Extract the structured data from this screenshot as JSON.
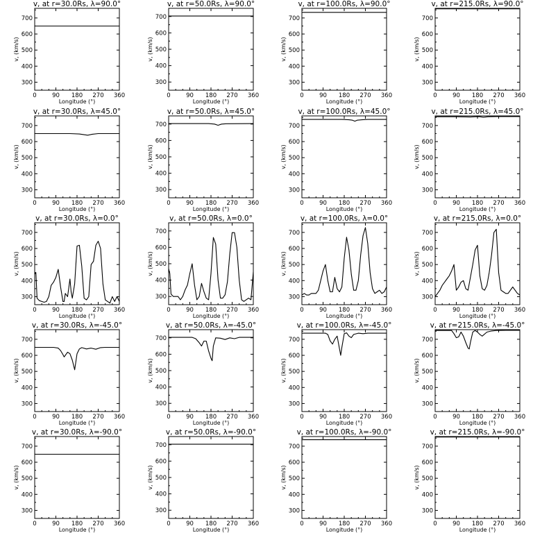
{
  "chart_data": [
    {
      "type": "line",
      "title": "v, at r=30.0Rs, λ=90.0°",
      "xlabel": "Longitude (°)",
      "ylabel": "v, (km/s)",
      "xlim": [
        0,
        360
      ],
      "ylim": [
        250,
        760
      ],
      "xticks": [
        0,
        90,
        180,
        270,
        360
      ],
      "yticks": [
        300,
        400,
        500,
        600,
        700
      ],
      "x": [
        0,
        360
      ],
      "y": [
        650,
        650
      ]
    },
    {
      "type": "line",
      "title": "v, at r=50.0Rs, λ=90.0°",
      "xlabel": "Longitude (°)",
      "ylabel": "v, (km/s)",
      "xlim": [
        0,
        360
      ],
      "ylim": [
        250,
        750
      ],
      "xticks": [
        0,
        90,
        180,
        270,
        360
      ],
      "yticks": [
        300,
        400,
        500,
        600,
        700
      ],
      "x": [
        0,
        360
      ],
      "y": [
        703,
        703
      ]
    },
    {
      "type": "line",
      "title": "v, at r=100.0Rs, λ=90.0°",
      "xlabel": "Longitude (°)",
      "ylabel": "v, (km/s)",
      "xlim": [
        0,
        360
      ],
      "ylim": [
        250,
        760
      ],
      "xticks": [
        0,
        90,
        180,
        270,
        360
      ],
      "yticks": [
        300,
        400,
        500,
        600,
        700
      ],
      "x": [
        0,
        360
      ],
      "y": [
        735,
        735
      ]
    },
    {
      "type": "line",
      "title": "v, at r=215.0Rs, λ=90.0°",
      "xlabel": "Longitude (°)",
      "ylabel": "v, (km/s)",
      "xlim": [
        0,
        360
      ],
      "ylim": [
        250,
        760
      ],
      "xticks": [
        0,
        90,
        180,
        270,
        360
      ],
      "yticks": [
        300,
        400,
        500,
        600,
        700
      ],
      "x": [
        0,
        360
      ],
      "y": [
        757,
        757
      ]
    },
    {
      "type": "line",
      "title": "v, at r=30.0Rs, λ=45.0°",
      "xlabel": "Longitude (°)",
      "ylabel": "v, (km/s)",
      "xlim": [
        0,
        360
      ],
      "ylim": [
        250,
        760
      ],
      "xticks": [
        0,
        90,
        180,
        270,
        360
      ],
      "yticks": [
        300,
        400,
        500,
        600,
        700
      ],
      "x": [
        0,
        150,
        190,
        210,
        225,
        245,
        270,
        360
      ],
      "y": [
        650,
        650,
        647,
        643,
        640,
        646,
        650,
        650
      ]
    },
    {
      "type": "line",
      "title": "v, at r=50.0Rs, λ=45.0°",
      "xlabel": "Longitude (°)",
      "ylabel": "v, (km/s)",
      "xlim": [
        0,
        360
      ],
      "ylim": [
        250,
        750
      ],
      "xticks": [
        0,
        90,
        180,
        270,
        360
      ],
      "yticks": [
        300,
        400,
        500,
        600,
        700
      ],
      "x": [
        0,
        170,
        195,
        210,
        225,
        245,
        360
      ],
      "y": [
        703,
        703,
        700,
        693,
        700,
        702,
        703
      ]
    },
    {
      "type": "line",
      "title": "v, at r=100.0Rs, λ=45.0°",
      "xlabel": "Longitude (°)",
      "ylabel": "v, (km/s)",
      "xlim": [
        0,
        360
      ],
      "ylim": [
        250,
        760
      ],
      "xticks": [
        0,
        90,
        180,
        270,
        360
      ],
      "yticks": [
        300,
        400,
        500,
        600,
        700
      ],
      "x": [
        0,
        170,
        200,
        215,
        225,
        235,
        255,
        280,
        360
      ],
      "y": [
        738,
        738,
        736,
        733,
        727,
        733,
        736,
        738,
        738
      ]
    },
    {
      "type": "line",
      "title": "v, at r=215.0Rs, λ=45.0°",
      "xlabel": "Longitude (°)",
      "ylabel": "v, (km/s)",
      "xlim": [
        0,
        360
      ],
      "ylim": [
        250,
        760
      ],
      "xticks": [
        0,
        90,
        180,
        270,
        360
      ],
      "yticks": [
        300,
        400,
        500,
        600,
        700
      ],
      "x": [
        0,
        90,
        150,
        185,
        205,
        225,
        260,
        360
      ],
      "y": [
        755,
        755,
        753,
        756,
        752,
        755,
        756,
        756
      ]
    },
    {
      "type": "line",
      "title": "v, at r=30.0Rs, λ=0.0°",
      "xlabel": "Longitude (°)",
      "ylabel": "v, (km/s)",
      "xlim": [
        0,
        360
      ],
      "ylim": [
        250,
        760
      ],
      "xticks": [
        0,
        90,
        180,
        270,
        360
      ],
      "yticks": [
        300,
        400,
        500,
        600,
        700
      ],
      "x": [
        0,
        5,
        10,
        20,
        30,
        40,
        50,
        60,
        70,
        80,
        90,
        100,
        110,
        120,
        125,
        130,
        140,
        150,
        155,
        160,
        170,
        180,
        190,
        200,
        210,
        220,
        230,
        240,
        250,
        260,
        270,
        280,
        290,
        300,
        310,
        320,
        330,
        340,
        350,
        360
      ],
      "y": [
        440,
        450,
        290,
        275,
        270,
        265,
        270,
        300,
        370,
        390,
        420,
        470,
        360,
        270,
        270,
        320,
        300,
        410,
        330,
        290,
        380,
        615,
        620,
        490,
        290,
        280,
        300,
        500,
        520,
        620,
        645,
        600,
        380,
        280,
        270,
        260,
        300,
        270,
        300,
        270
      ]
    },
    {
      "type": "line",
      "title": "v, at r=50.0Rs, λ=0.0°",
      "xlabel": "Longitude (°)",
      "ylabel": "v, (km/s)",
      "xlim": [
        0,
        360
      ],
      "ylim": [
        250,
        750
      ],
      "xticks": [
        0,
        90,
        180,
        270,
        360
      ],
      "yticks": [
        300,
        400,
        500,
        600,
        700
      ],
      "x": [
        0,
        5,
        10,
        20,
        40,
        50,
        60,
        70,
        80,
        90,
        100,
        110,
        120,
        130,
        140,
        150,
        160,
        170,
        180,
        190,
        200,
        210,
        220,
        230,
        240,
        250,
        260,
        270,
        280,
        290,
        300,
        310,
        320,
        330,
        340,
        350,
        360
      ],
      "y": [
        470,
        440,
        315,
        300,
        300,
        280,
        300,
        340,
        370,
        440,
        500,
        370,
        280,
        300,
        380,
        330,
        290,
        280,
        440,
        660,
        620,
        400,
        290,
        290,
        310,
        390,
        560,
        690,
        690,
        600,
        400,
        280,
        270,
        280,
        290,
        280,
        450
      ]
    },
    {
      "type": "line",
      "title": "v, at r=100.0Rs, λ=0.0°",
      "xlabel": "Longitude (°)",
      "ylabel": "v, (km/s)",
      "xlim": [
        0,
        360
      ],
      "ylim": [
        250,
        760
      ],
      "xticks": [
        0,
        90,
        180,
        270,
        360
      ],
      "yticks": [
        300,
        400,
        500,
        600,
        700
      ],
      "x": [
        0,
        10,
        20,
        30,
        40,
        50,
        60,
        70,
        80,
        90,
        100,
        110,
        120,
        130,
        140,
        150,
        160,
        170,
        180,
        190,
        200,
        210,
        220,
        230,
        240,
        250,
        260,
        270,
        280,
        290,
        300,
        310,
        320,
        330,
        340,
        350,
        360
      ],
      "y": [
        310,
        320,
        310,
        310,
        320,
        320,
        320,
        340,
        400,
        460,
        500,
        400,
        330,
        330,
        420,
        350,
        330,
        360,
        540,
        670,
        590,
        440,
        340,
        340,
        400,
        560,
        680,
        730,
        630,
        450,
        350,
        320,
        330,
        340,
        320,
        330,
        360
      ]
    },
    {
      "type": "line",
      "title": "v, at r=215.0Rs, λ=0.0°",
      "xlabel": "Longitude (°)",
      "ylabel": "v, (km/s)",
      "xlim": [
        0,
        360
      ],
      "ylim": [
        250,
        760
      ],
      "xticks": [
        0,
        90,
        180,
        270,
        360
      ],
      "yticks": [
        300,
        400,
        500,
        600,
        700
      ],
      "x": [
        0,
        10,
        20,
        30,
        40,
        50,
        60,
        70,
        80,
        90,
        100,
        110,
        120,
        130,
        140,
        150,
        160,
        170,
        180,
        190,
        200,
        210,
        220,
        230,
        240,
        250,
        260,
        270,
        280,
        290,
        300,
        310,
        320,
        330,
        340,
        350,
        360
      ],
      "y": [
        300,
        320,
        340,
        370,
        390,
        410,
        430,
        460,
        500,
        340,
        360,
        390,
        400,
        350,
        340,
        420,
        500,
        590,
        620,
        430,
        350,
        340,
        370,
        450,
        560,
        700,
        720,
        450,
        340,
        330,
        320,
        320,
        340,
        360,
        340,
        320,
        310
      ]
    },
    {
      "type": "line",
      "title": "v, at r=30.0Rs, λ=-45.0°",
      "xlabel": "Longitude (°)",
      "ylabel": "v, (km/s)",
      "xlim": [
        0,
        360
      ],
      "ylim": [
        250,
        760
      ],
      "xticks": [
        0,
        90,
        180,
        270,
        360
      ],
      "yticks": [
        300,
        400,
        500,
        600,
        700
      ],
      "x": [
        0,
        80,
        100,
        110,
        120,
        125,
        130,
        140,
        150,
        160,
        165,
        170,
        180,
        190,
        200,
        220,
        240,
        260,
        280,
        300,
        360
      ],
      "y": [
        650,
        650,
        645,
        630,
        605,
        590,
        600,
        620,
        610,
        570,
        540,
        510,
        610,
        640,
        648,
        640,
        645,
        638,
        648,
        650,
        650
      ]
    },
    {
      "type": "line",
      "title": "v, at r=50.0Rs, λ=-45.0°",
      "xlabel": "Longitude (°)",
      "ylabel": "v, (km/s)",
      "xlim": [
        0,
        360
      ],
      "ylim": [
        250,
        750
      ],
      "xticks": [
        0,
        90,
        180,
        270,
        360
      ],
      "yticks": [
        300,
        400,
        500,
        600,
        700
      ],
      "x": [
        0,
        100,
        115,
        130,
        140,
        150,
        160,
        170,
        180,
        185,
        190,
        200,
        220,
        240,
        260,
        280,
        300,
        360
      ],
      "y": [
        703,
        703,
        695,
        670,
        650,
        680,
        680,
        620,
        575,
        560,
        650,
        700,
        698,
        690,
        700,
        695,
        703,
        703
      ]
    },
    {
      "type": "line",
      "title": "v, at r=100.0Rs, λ=-45.0°",
      "xlabel": "Longitude (°)",
      "ylabel": "v, (km/s)",
      "xlim": [
        0,
        360
      ],
      "ylim": [
        250,
        760
      ],
      "xticks": [
        0,
        90,
        180,
        270,
        360
      ],
      "yticks": [
        300,
        400,
        500,
        600,
        700
      ],
      "x": [
        0,
        100,
        110,
        120,
        130,
        140,
        150,
        160,
        165,
        170,
        180,
        190,
        200,
        210,
        220,
        240,
        260,
        280,
        300,
        360
      ],
      "y": [
        738,
        738,
        730,
        690,
        670,
        700,
        720,
        640,
        600,
        650,
        735,
        740,
        720,
        710,
        730,
        738,
        735,
        738,
        738,
        738
      ]
    },
    {
      "type": "line",
      "title": "v, at r=215.0Rs, λ=-45.0°",
      "xlabel": "Longitude (°)",
      "ylabel": "v, (km/s)",
      "xlim": [
        0,
        360
      ],
      "ylim": [
        250,
        760
      ],
      "xticks": [
        0,
        90,
        180,
        270,
        360
      ],
      "yticks": [
        300,
        400,
        500,
        600,
        700
      ],
      "x": [
        0,
        70,
        80,
        90,
        100,
        110,
        120,
        130,
        140,
        145,
        150,
        160,
        170,
        180,
        190,
        200,
        220,
        240,
        260,
        300,
        360
      ],
      "y": [
        755,
        755,
        735,
        710,
        715,
        745,
        720,
        680,
        645,
        640,
        680,
        745,
        755,
        745,
        730,
        720,
        745,
        752,
        755,
        756,
        756
      ]
    },
    {
      "type": "line",
      "title": "v, at r=30.0Rs, λ=-90.0°",
      "xlabel": "Longitude (°)",
      "ylabel": "v, (km/s)",
      "xlim": [
        0,
        360
      ],
      "ylim": [
        250,
        760
      ],
      "xticks": [
        0,
        90,
        180,
        270,
        360
      ],
      "yticks": [
        300,
        400,
        500,
        600,
        700
      ],
      "x": [
        0,
        360
      ],
      "y": [
        650,
        650
      ]
    },
    {
      "type": "line",
      "title": "v, at r=50.0Rs, λ=-90.0°",
      "xlabel": "Longitude (°)",
      "ylabel": "v, (km/s)",
      "xlim": [
        0,
        360
      ],
      "ylim": [
        250,
        750
      ],
      "xticks": [
        0,
        90,
        180,
        270,
        360
      ],
      "yticks": [
        300,
        400,
        500,
        600,
        700
      ],
      "x": [
        0,
        360
      ],
      "y": [
        703,
        703
      ]
    },
    {
      "type": "line",
      "title": "v, at r=100.0Rs, λ=-90.0°",
      "xlabel": "Longitude (°)",
      "ylabel": "v, (km/s)",
      "xlim": [
        0,
        360
      ],
      "ylim": [
        250,
        760
      ],
      "xticks": [
        0,
        90,
        180,
        270,
        360
      ],
      "yticks": [
        300,
        400,
        500,
        600,
        700
      ],
      "x": [
        0,
        360
      ],
      "y": [
        740,
        740
      ]
    },
    {
      "type": "line",
      "title": "v, at r=215.0Rs, λ=-90.0°",
      "xlabel": "Longitude (°)",
      "ylabel": "v, (km/s)",
      "xlim": [
        0,
        360
      ],
      "ylim": [
        250,
        760
      ],
      "xticks": [
        0,
        90,
        180,
        270,
        360
      ],
      "yticks": [
        300,
        400,
        500,
        600,
        700
      ],
      "x": [
        0,
        360
      ],
      "y": [
        757,
        757
      ]
    }
  ]
}
